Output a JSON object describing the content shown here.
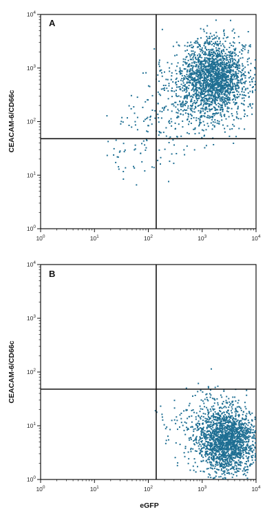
{
  "chart_data": [
    {
      "type": "scatter",
      "panel": "A",
      "xlabel": "",
      "ylabel": "CEACAM-6/CD66c",
      "x_scale": "log",
      "y_scale": "log",
      "xlim": [
        1,
        10000
      ],
      "ylim": [
        1,
        10000
      ],
      "x_ticks": [
        {
          "base": "10",
          "exp": "0"
        },
        {
          "base": "10",
          "exp": "1"
        },
        {
          "base": "10",
          "exp": "2"
        },
        {
          "base": "10",
          "exp": "3"
        },
        {
          "base": "10",
          "exp": "4"
        }
      ],
      "y_ticks": [
        {
          "base": "10",
          "exp": "0"
        },
        {
          "base": "10",
          "exp": "1"
        },
        {
          "base": "10",
          "exp": "2"
        },
        {
          "base": "10",
          "exp": "3"
        },
        {
          "base": "10",
          "exp": "4"
        }
      ],
      "quadrant_gate": {
        "x": 140,
        "y": 48
      },
      "point_color": "#1f6f93",
      "populations": [
        {
          "center": [
            1700,
            650
          ],
          "log_sd": [
            0.3,
            0.35
          ],
          "count": 1700
        },
        {
          "center": [
            900,
            400
          ],
          "log_sd": [
            0.45,
            0.4
          ],
          "count": 450
        },
        {
          "center": [
            300,
            120
          ],
          "log_sd": [
            0.5,
            0.35
          ],
          "count": 120
        },
        {
          "center": [
            60,
            30
          ],
          "log_sd": [
            0.3,
            0.25
          ],
          "count": 45
        }
      ]
    },
    {
      "type": "scatter",
      "panel": "B",
      "xlabel": "eGFP",
      "ylabel": "CEACAM-6/CD66c",
      "x_scale": "log",
      "y_scale": "log",
      "xlim": [
        1,
        10000
      ],
      "ylim": [
        1,
        10000
      ],
      "x_ticks": [
        {
          "base": "10",
          "exp": "0"
        },
        {
          "base": "10",
          "exp": "1"
        },
        {
          "base": "10",
          "exp": "2"
        },
        {
          "base": "10",
          "exp": "3"
        },
        {
          "base": "10",
          "exp": "4"
        }
      ],
      "y_ticks": [
        {
          "base": "10",
          "exp": "0"
        },
        {
          "base": "10",
          "exp": "1"
        },
        {
          "base": "10",
          "exp": "2"
        },
        {
          "base": "10",
          "exp": "3"
        },
        {
          "base": "10",
          "exp": "4"
        }
      ],
      "quadrant_gate": {
        "x": 140,
        "y": 48
      },
      "point_color": "#1f6f93",
      "populations": [
        {
          "center": [
            2800,
            5
          ],
          "log_sd": [
            0.25,
            0.3
          ],
          "count": 1700
        },
        {
          "center": [
            1500,
            9
          ],
          "log_sd": [
            0.4,
            0.4
          ],
          "count": 300
        }
      ]
    }
  ]
}
